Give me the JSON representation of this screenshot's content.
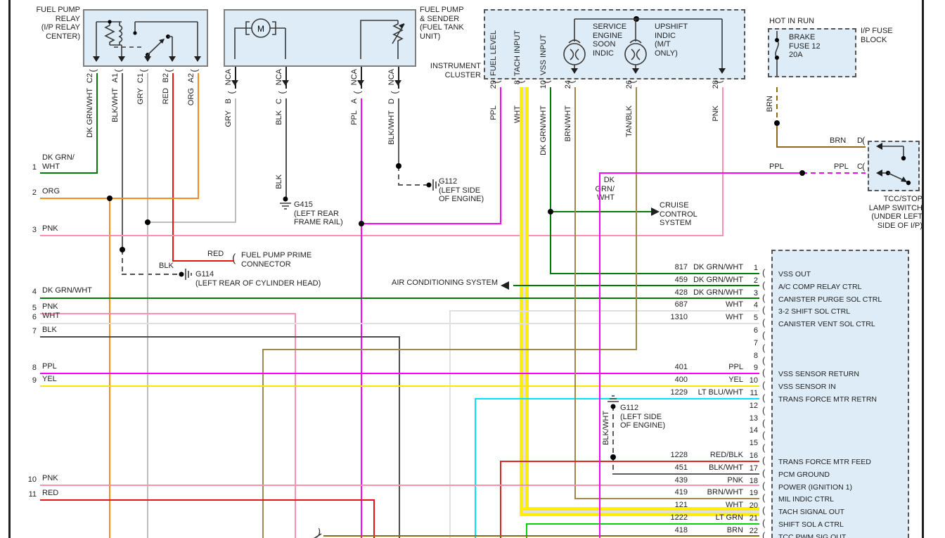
{
  "palette": {
    "DK_GRN_WHT": "#007a00",
    "BLK_WHT": "#5c5c5c",
    "GRY": "#bdbdbd",
    "RED": "#ee1111",
    "ORG": "#f78b1f",
    "PNK": "#ff8fae",
    "PPL": "#fb00fb",
    "YEL": "#f5e800",
    "WHT": "#e0e0e0",
    "BLK": "#4d4d4d",
    "BRN": "#8a6c14",
    "BRN_WHT": "#a38748",
    "TAN_BLK": "#9b8a56",
    "LT_BLU_WHT": "#00e4f7",
    "LT_GRN": "#0ad20a",
    "RED_BLK": "#e02222",
    "highlight": "#ffef00",
    "box_fill": "#ddecf7",
    "box_border": "#7f7f7f",
    "dash_border": "#555555",
    "ink": "#1f1f1f"
  },
  "relay": {
    "title": "FUEL PUMP\nRELAY\n(I/P RELAY\nCENTER)",
    "pins": [
      {
        "pin": "C2",
        "color": "DK GRN/WHT"
      },
      {
        "pin": "A1",
        "color": "BLK/WHT"
      },
      {
        "pin": "C1",
        "color": "GRY"
      },
      {
        "pin": "B2",
        "color": "RED"
      },
      {
        "pin": "A2",
        "color": "ORG"
      }
    ]
  },
  "fuel_pump": {
    "title": "FUEL PUMP\n& SENDER\n(FUEL TANK\nUNIT)",
    "motor": "M",
    "pins": [
      {
        "stub": "NCA",
        "pin": "B",
        "color": "GRY"
      },
      {
        "stub": "NCA",
        "pin": "C",
        "color": "BLK"
      },
      {
        "stub": "NCA",
        "pin": "A",
        "color": "PPL"
      },
      {
        "stub": "NCA",
        "pin": "D",
        "color": "BLK/WHT"
      }
    ]
  },
  "cluster": {
    "title": "INSTRUMENT\nCLUSTER",
    "channels": [
      "FUEL LEVEL",
      "TACH INPUT",
      "VSS INPUT"
    ],
    "indicators": [
      "SERVICE\nENGINE\nSOON\nINDIC",
      "UPSHIFT\nINDIC\n(M/T\nONLY)"
    ],
    "pins": [
      {
        "pin": "29",
        "color": "PPL"
      },
      {
        "pin": "8",
        "color": "WHT"
      },
      {
        "pin": "10",
        "color": "DK GRN/WHT"
      },
      {
        "pin": "24",
        "color": "BRN/WHT"
      },
      {
        "pin": "26",
        "color": "TAN/BLK"
      },
      {
        "pin": "28",
        "color": "PNK"
      }
    ]
  },
  "fuse_block": {
    "hot": "HOT IN RUN",
    "name": "I/P FUSE\nBLOCK",
    "fuse": "BRAKE\nFUSE 12\n20A",
    "wire": "BRN"
  },
  "tcc": {
    "caption": "TCC/STOP\nLAMP SWITCH\n(UNDER LEFT\nSIDE OF I/P)",
    "pin_d": {
      "wire": "BRN",
      "pin": "D"
    },
    "pin_c": {
      "wire_in": "PPL",
      "wire": "PPL",
      "pin": "C"
    }
  },
  "grounds": {
    "g415": {
      "name": "G415\n(LEFT REAR\nFRAME RAIL)",
      "wire": "BLK"
    },
    "g114": {
      "name": "G114\n(LEFT REAR OF CYLINDER HEAD)",
      "wire": "BLK"
    },
    "g112_engine": {
      "name": "G112\n(LEFT SIDE\nOF ENGINE)"
    },
    "g112_pcm": {
      "name": "G112\n(LEFT SIDE\nOF ENGINE)",
      "wire": "BLK/WHT"
    }
  },
  "annotations": {
    "cruise_wire": "DK\nGRN/\nWHT",
    "cruise": "CRUISE\nCONTROL\nSYSTEM",
    "ac": "AIR CONDITIONING SYSTEM",
    "prime_wire": "RED",
    "prime": "FUEL PUMP PRIME\nCONNECTOR"
  },
  "left_taps": [
    {
      "n": "1",
      "color": "DK GRN/\nWHT"
    },
    {
      "n": "2",
      "color": "ORG"
    },
    {
      "n": "3",
      "color": "PNK"
    },
    {
      "n": "4",
      "color": "DK GRN/WHT"
    },
    {
      "n": "5",
      "color": "PNK"
    },
    {
      "n": "6",
      "color": "WHT"
    },
    {
      "n": "7",
      "color": "BLK"
    },
    {
      "n": "8",
      "color": "PPL"
    },
    {
      "n": "9",
      "color": "YEL"
    },
    {
      "n": "10",
      "color": "PNK"
    },
    {
      "n": "11",
      "color": "RED"
    }
  ],
  "pcm": {
    "pins": [
      {
        "n": "1",
        "num": "817",
        "color": "DK GRN/WHT",
        "label": "VSS OUT"
      },
      {
        "n": "2",
        "num": "459",
        "color": "DK GRN/WHT",
        "label": "A/C COMP RELAY CTRL"
      },
      {
        "n": "3",
        "num": "428",
        "color": "DK GRN/WHT",
        "label": "CANISTER PURGE SOL CTRL"
      },
      {
        "n": "4",
        "num": "687",
        "color": "WHT",
        "label": "3-2 SHIFT SOL CTRL"
      },
      {
        "n": "5",
        "num": "1310",
        "color": "WHT",
        "label": "CANISTER VENT SOL CTRL"
      },
      {
        "n": "6",
        "num": "",
        "color": "",
        "label": ""
      },
      {
        "n": "7",
        "num": "",
        "color": "",
        "label": ""
      },
      {
        "n": "8",
        "num": "",
        "color": "",
        "label": ""
      },
      {
        "n": "9",
        "num": "401",
        "color": "PPL",
        "label": "VSS SENSOR RETURN"
      },
      {
        "n": "10",
        "num": "400",
        "color": "YEL",
        "label": "VSS SENSOR IN"
      },
      {
        "n": "11",
        "num": "1229",
        "color": "LT BLU/WHT",
        "label": "TRANS FORCE MTR RETRN"
      },
      {
        "n": "12",
        "num": "",
        "color": "",
        "label": ""
      },
      {
        "n": "13",
        "num": "",
        "color": "",
        "label": ""
      },
      {
        "n": "14",
        "num": "",
        "color": "",
        "label": ""
      },
      {
        "n": "15",
        "num": "",
        "color": "",
        "label": ""
      },
      {
        "n": "16",
        "num": "1228",
        "color": "RED/BLK",
        "label": "TRANS FORCE MTR FEED"
      },
      {
        "n": "17",
        "num": "451",
        "color": "BLK/WHT",
        "label": "PCM GROUND"
      },
      {
        "n": "18",
        "num": "439",
        "color": "PNK",
        "label": "POWER (IGNITION 1)"
      },
      {
        "n": "19",
        "num": "419",
        "color": "BRN/WHT",
        "label": "MIL INDIC CTRL"
      },
      {
        "n": "20",
        "num": "121",
        "color": "WHT",
        "label": "TACH SIGNAL OUT"
      },
      {
        "n": "21",
        "num": "1222",
        "color": "LT GRN",
        "label": "SHIFT SOL A CTRL"
      },
      {
        "n": "22",
        "num": "418",
        "color": "BRN",
        "label": "TCC PWM SIG OUT"
      }
    ]
  }
}
